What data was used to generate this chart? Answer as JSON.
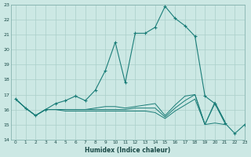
{
  "title": "",
  "xlabel": "Humidex (Indice chaleur)",
  "ylabel": "",
  "xlim": [
    -0.5,
    23
  ],
  "ylim": [
    14,
    23
  ],
  "yticks": [
    14,
    15,
    16,
    17,
    18,
    19,
    20,
    21,
    22,
    23
  ],
  "xticks": [
    0,
    1,
    2,
    3,
    4,
    5,
    6,
    7,
    8,
    9,
    10,
    11,
    12,
    13,
    14,
    15,
    16,
    17,
    18,
    19,
    20,
    21,
    22,
    23
  ],
  "bg_color": "#cce8e4",
  "line_color": "#1a7d78",
  "grid_color": "#aacfca",
  "series": [
    [
      16.7,
      16.1,
      15.6,
      16.0,
      16.4,
      16.6,
      16.9,
      16.6,
      17.3,
      18.6,
      20.5,
      17.8,
      21.1,
      21.1,
      21.5,
      22.9,
      22.1,
      21.6,
      20.9,
      16.9,
      16.4,
      15.1,
      14.4,
      15.0
    ],
    [
      16.7,
      16.1,
      15.6,
      16.0,
      16.0,
      15.9,
      15.9,
      15.9,
      15.9,
      15.9,
      15.9,
      15.9,
      15.9,
      15.9,
      15.8,
      15.4,
      15.9,
      16.3,
      16.7,
      15.0,
      15.1,
      15.0,
      null,
      null
    ],
    [
      16.7,
      16.1,
      15.6,
      16.0,
      16.0,
      16.0,
      16.0,
      16.0,
      16.0,
      16.0,
      16.0,
      16.0,
      16.1,
      16.1,
      16.1,
      15.5,
      16.1,
      16.6,
      17.0,
      15.0,
      16.4,
      15.2,
      null,
      null
    ],
    [
      16.7,
      16.1,
      15.6,
      16.0,
      16.0,
      16.0,
      16.0,
      16.0,
      16.1,
      16.2,
      16.2,
      16.1,
      16.2,
      16.3,
      16.4,
      15.6,
      16.3,
      16.9,
      17.0,
      15.0,
      16.5,
      15.2,
      null,
      null
    ]
  ]
}
